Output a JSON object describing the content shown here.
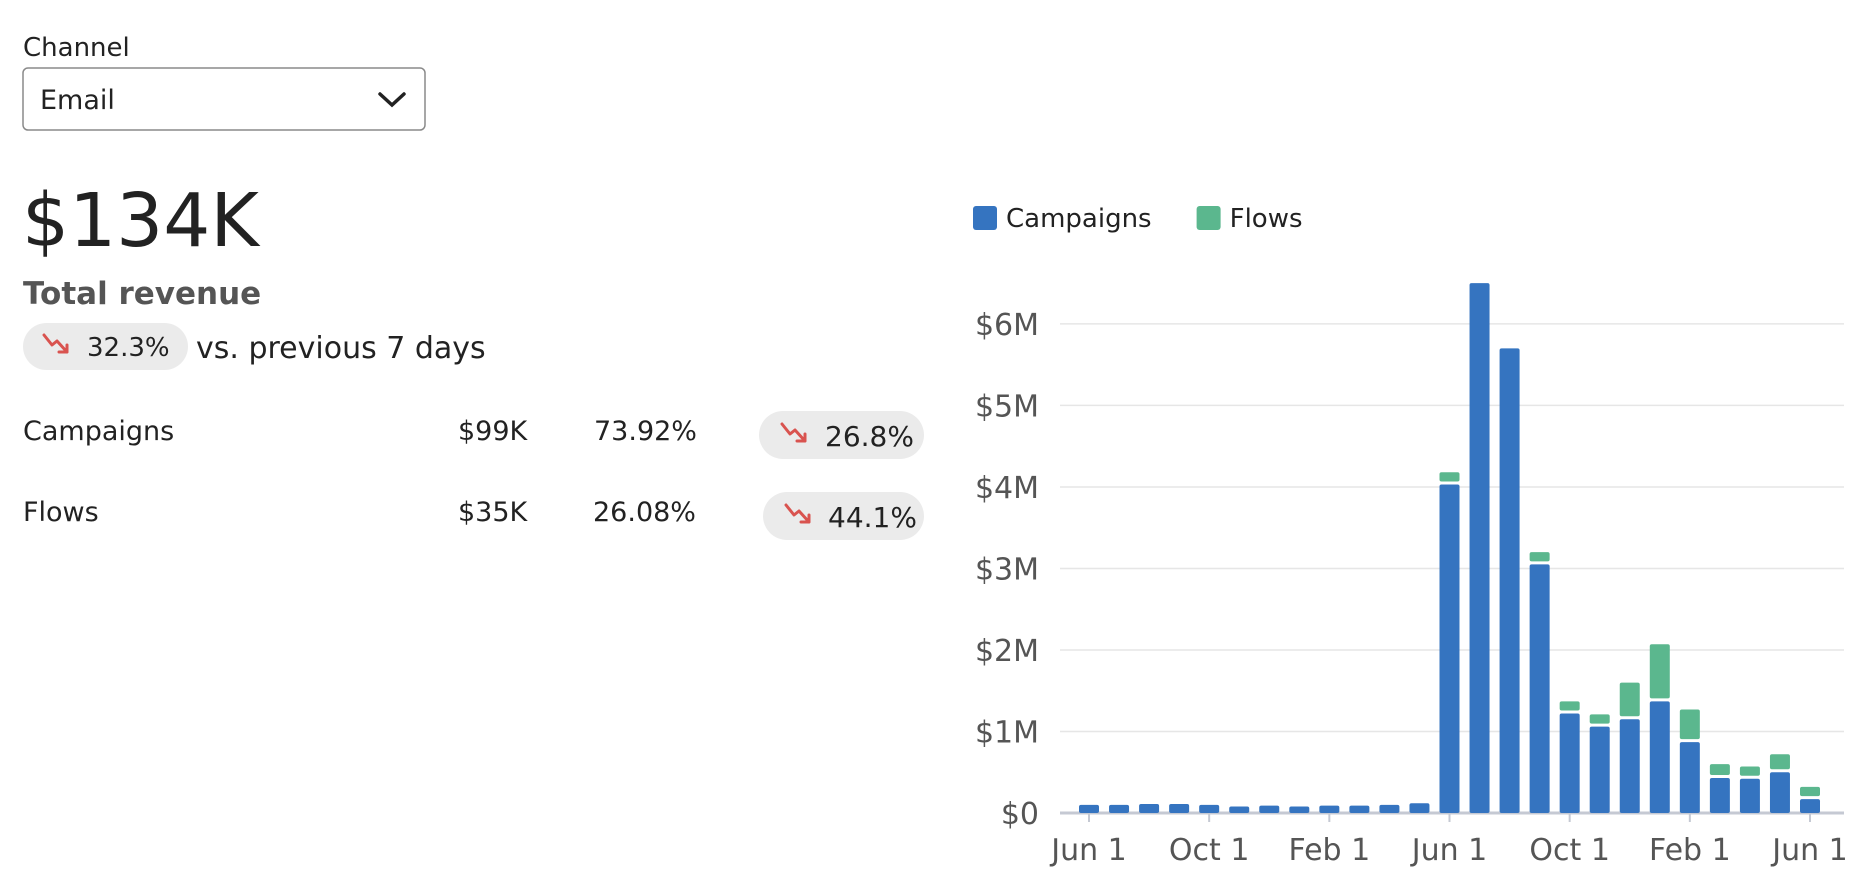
{
  "channel_label": "Channel",
  "dropdown": {
    "selected": "Email"
  },
  "total": {
    "value": "$134K",
    "label": "Total revenue",
    "change": "32.3%",
    "comparison": "vs. previous 7 days"
  },
  "breakdown": [
    {
      "name": "Campaigns",
      "revenue": "$99K",
      "share": "73.92%",
      "change": "26.8%"
    },
    {
      "name": "Flows",
      "revenue": "$35K",
      "share": "26.08%",
      "change": "44.1%"
    }
  ],
  "chart_data": {
    "type": "bar",
    "stacked": true,
    "legend": "top-left",
    "grid": true,
    "categories": [
      "Jun 1",
      null,
      null,
      null,
      "Oct 1",
      null,
      null,
      null,
      "Feb 1",
      null,
      null,
      null,
      "Jun 1",
      null,
      null,
      null,
      "Oct 1",
      null,
      null,
      null,
      "Feb 1",
      null,
      null,
      null,
      "Jun 1"
    ],
    "series": [
      {
        "name": "Campaigns",
        "color": "#3574c0",
        "values": [
          100000,
          100000,
          110000,
          110000,
          100000,
          80000,
          90000,
          80000,
          90000,
          90000,
          100000,
          120000,
          4030000,
          6500000,
          5700000,
          3050000,
          1220000,
          1060000,
          1150000,
          1370000,
          870000,
          430000,
          420000,
          500000,
          170000
        ]
      },
      {
        "name": "Flows",
        "color": "#5bb78e",
        "values": [
          0,
          0,
          0,
          0,
          0,
          0,
          0,
          0,
          0,
          0,
          0,
          0,
          150000,
          0,
          0,
          150000,
          150000,
          150000,
          450000,
          700000,
          400000,
          170000,
          150000,
          220000,
          150000
        ]
      }
    ],
    "ylim": [
      0,
      6600000
    ],
    "yticks": [
      {
        "value": 0,
        "label": "$0"
      },
      {
        "value": 1000000,
        "label": "$1M"
      },
      {
        "value": 2000000,
        "label": "$2M"
      },
      {
        "value": 3000000,
        "label": "$3M"
      },
      {
        "value": 4000000,
        "label": "$4M"
      },
      {
        "value": 5000000,
        "label": "$5M"
      },
      {
        "value": 6000000,
        "label": "$6M"
      }
    ]
  }
}
